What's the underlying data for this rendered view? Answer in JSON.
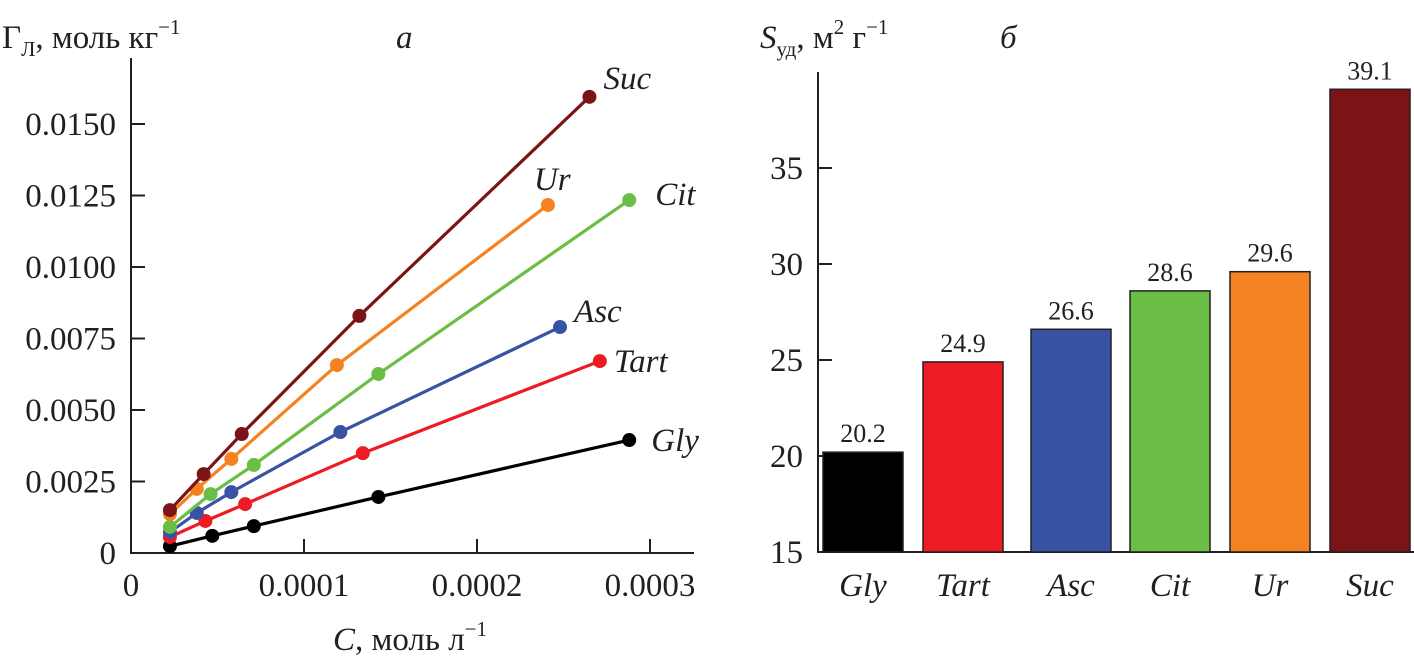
{
  "chart_data": [
    {
      "type": "line",
      "panel_label": "а",
      "ylabel_main": "Г",
      "ylabel_sub": "Л",
      "ylabel_unit": ", моль кг",
      "ylabel_exp": "−1",
      "xlabel_main": "C",
      "xlabel_unit": ", моль л",
      "xlabel_exp": "−1",
      "xlim": [
        0,
        0.00032
      ],
      "ylim": [
        0,
        0.0167
      ],
      "xticks": [
        0,
        0.0001,
        0.0002,
        0.0003
      ],
      "xtick_labels": [
        "0",
        "0.0001",
        "0.0002",
        "0.0003"
      ],
      "yticks": [
        0,
        0.0025,
        0.005,
        0.0075,
        0.01,
        0.0125,
        0.015
      ],
      "ytick_labels": [
        "0",
        "0.0025",
        "0.0050",
        "0.0075",
        "0.0100",
        "0.0125",
        "0.0150"
      ],
      "grid": false,
      "series": [
        {
          "name": "Gly",
          "color": "#000000",
          "x": [
            2.25e-05,
            4.7e-05,
            7.1e-05,
            0.000143,
            0.000288
          ],
          "y": [
            0.00024,
            0.0006,
            0.00094,
            0.00196,
            0.00395
          ]
        },
        {
          "name": "Tart",
          "color": "#ed1c24",
          "x": [
            2.25e-05,
            4.3e-05,
            6.6e-05,
            0.000134,
            0.000271
          ],
          "y": [
            0.00056,
            0.00112,
            0.00171,
            0.00349,
            0.00671
          ]
        },
        {
          "name": "Asc",
          "color": "#3953a4",
          "x": [
            2.25e-05,
            3.8e-05,
            5.8e-05,
            0.000121,
            0.000248
          ],
          "y": [
            0.00073,
            0.0014,
            0.00213,
            0.00423,
            0.0079
          ]
        },
        {
          "name": "Cit",
          "color": "#6abd45",
          "x": [
            2.25e-05,
            4.6e-05,
            7.1e-05,
            0.000143,
            0.000288
          ],
          "y": [
            0.00091,
            0.00206,
            0.00308,
            0.00626,
            0.01234
          ]
        },
        {
          "name": "Ur",
          "color": "#f58220",
          "x": [
            2.25e-05,
            3.8e-05,
            5.8e-05,
            0.000119,
            0.000241
          ],
          "y": [
            0.00136,
            0.00224,
            0.00329,
            0.00657,
            0.01217
          ]
        },
        {
          "name": "Suc",
          "color": "#7b1416",
          "x": [
            2.25e-05,
            4.2e-05,
            6.4e-05,
            0.000132,
            0.000265
          ],
          "y": [
            0.0015,
            0.00276,
            0.00416,
            0.00829,
            0.01595
          ]
        }
      ]
    },
    {
      "type": "bar",
      "panel_label": "б",
      "ylabel_main": "S",
      "ylabel_sub": "уд",
      "ylabel_unit": ", м",
      "ylabel_exp1": "2",
      "ylabel_unit2": " г",
      "ylabel_exp2": "−1",
      "ylim": [
        15,
        40
      ],
      "yticks": [
        15,
        20,
        25,
        30,
        35
      ],
      "ytick_labels": [
        "15",
        "20",
        "25",
        "30",
        "35"
      ],
      "grid": false,
      "categories": [
        "Gly",
        "Tart",
        "Asc",
        "Cit",
        "Ur",
        "Suc"
      ],
      "values": [
        20.2,
        24.9,
        26.6,
        28.6,
        29.6,
        39.1
      ],
      "value_labels": [
        "20.2",
        "24.9",
        "26.6",
        "28.6",
        "29.6",
        "39.1"
      ],
      "colors": [
        "#000000",
        "#ed1c24",
        "#3953a4",
        "#6abd45",
        "#f58220",
        "#7b1416"
      ]
    }
  ]
}
